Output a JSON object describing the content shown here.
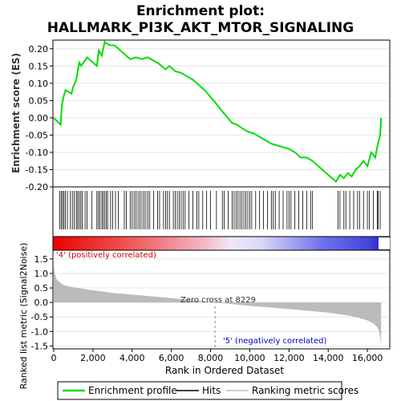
{
  "title": {
    "line1": "Enrichment plot:",
    "line2": "HALLMARK_PI3K_AKT_MTOR_SIGNALING"
  },
  "colors": {
    "es_line": "#00dd00",
    "hits": "#000000",
    "metric_fill": "#bbbbbb",
    "pos_label": "#cc0000",
    "neg_label": "#0000cc",
    "grid": "#e6e6e6"
  },
  "chart_data": [
    {
      "type": "line",
      "name": "enrichment-profile",
      "ylabel": "Enrichment score (ES)",
      "ylim": [
        -0.2,
        0.225
      ],
      "yticks": [
        -0.2,
        -0.15,
        -0.1,
        -0.05,
        0.0,
        0.05,
        0.1,
        0.15,
        0.2
      ],
      "ytick_labels": [
        "-0.20",
        "-0.15",
        "-0.10",
        "-0.05",
        "0.00",
        "0.05",
        "0.10",
        "0.15",
        "0.20"
      ],
      "xlim": [
        0,
        17100
      ],
      "grid": true,
      "series": [
        {
          "name": "Enrichment profile",
          "x": [
            0,
            350,
            420,
            500,
            600,
            900,
            1000,
            1150,
            1300,
            1400,
            1700,
            2200,
            2300,
            2450,
            2600,
            2700,
            2900,
            3100,
            3300,
            3600,
            3900,
            4200,
            4500,
            4800,
            5100,
            5400,
            5700,
            5900,
            6200,
            6500,
            6800,
            7100,
            7400,
            7700,
            8000,
            8229,
            8500,
            8800,
            9100,
            9350,
            9600,
            9900,
            10200,
            10500,
            10800,
            11100,
            11400,
            11700,
            12000,
            12300,
            12600,
            12900,
            13200,
            13500,
            13800,
            14100,
            14400,
            14600,
            14800,
            15000,
            15200,
            15400,
            15600,
            15800,
            16000,
            16200,
            16400,
            16500,
            16650,
            16700
          ],
          "y": [
            0.0,
            -0.02,
            0.04,
            0.06,
            0.08,
            0.07,
            0.09,
            0.11,
            0.16,
            0.15,
            0.175,
            0.15,
            0.195,
            0.18,
            0.22,
            0.215,
            0.21,
            0.21,
            0.2,
            0.185,
            0.17,
            0.175,
            0.17,
            0.175,
            0.165,
            0.155,
            0.14,
            0.15,
            0.135,
            0.13,
            0.12,
            0.11,
            0.095,
            0.08,
            0.06,
            0.045,
            0.025,
            0.005,
            -0.015,
            -0.02,
            -0.03,
            -0.04,
            -0.045,
            -0.055,
            -0.065,
            -0.075,
            -0.08,
            -0.085,
            -0.09,
            -0.1,
            -0.115,
            -0.115,
            -0.125,
            -0.14,
            -0.155,
            -0.17,
            -0.185,
            -0.165,
            -0.175,
            -0.16,
            -0.17,
            -0.15,
            -0.14,
            -0.125,
            -0.14,
            -0.1,
            -0.115,
            -0.085,
            -0.05,
            0.0
          ]
        }
      ]
    },
    {
      "type": "scatter",
      "name": "hits",
      "x": [
        300,
        380,
        450,
        520,
        600,
        700,
        850,
        950,
        1050,
        1150,
        1220,
        1300,
        1380,
        1450,
        1600,
        1700,
        1950,
        2200,
        2280,
        2350,
        2450,
        2520,
        2600,
        2680,
        2750,
        2900,
        3000,
        3150,
        3300,
        3600,
        3700,
        3900,
        4000,
        4100,
        4200,
        4300,
        4400,
        4500,
        4600,
        4700,
        4800,
        4900,
        5100,
        5300,
        5400,
        5600,
        5700,
        5800,
        5900,
        6100,
        6200,
        6300,
        6400,
        6500,
        6600,
        6700,
        6900,
        7100,
        7300,
        7400,
        7600,
        7800,
        8000,
        8300,
        8600,
        8700,
        8900,
        9100,
        9200,
        9300,
        9400,
        9500,
        9600,
        9700,
        9800,
        9900,
        10000,
        10100,
        10300,
        10500,
        10700,
        10900,
        11100,
        11200,
        11300,
        11500,
        11700,
        11900,
        12000,
        12100,
        12300,
        12500,
        12700,
        12900,
        13100,
        13200,
        14500,
        14600,
        14800,
        14900,
        15100,
        15300,
        15500,
        15600,
        15800,
        16000,
        16100,
        16300,
        16500,
        16550,
        16650
      ]
    },
    {
      "type": "area",
      "name": "ranked-list-metric",
      "ylabel": "Ranked list metric (Signal2Noise)",
      "xlabel": "Rank in Ordered Dataset",
      "ylim": [
        -1.6,
        1.8
      ],
      "yticks": [
        -1.5,
        -1.0,
        -0.5,
        0.0,
        0.5,
        1.0,
        1.5
      ],
      "ytick_labels": [
        "-1.5",
        "-1.0",
        "-0.5",
        "0.0",
        "0.5",
        "1.0",
        "1.5"
      ],
      "xticks": [
        0,
        2000,
        4000,
        6000,
        8000,
        10000,
        12000,
        14000,
        16000
      ],
      "xtick_labels": [
        "0",
        "2,000",
        "4,000",
        "6,000",
        "8,000",
        "10,000",
        "12,000",
        "14,000",
        "16,000"
      ],
      "x": [
        0,
        50,
        150,
        300,
        500,
        800,
        1200,
        2000,
        3000,
        4000,
        5000,
        6000,
        7000,
        8229,
        9000,
        10000,
        11000,
        12000,
        13000,
        14000,
        14500,
        15000,
        15500,
        16000,
        16300,
        16500,
        16600,
        16650,
        16700
      ],
      "y": [
        1.3,
        1.0,
        0.8,
        0.7,
        0.6,
        0.55,
        0.5,
        0.42,
        0.33,
        0.27,
        0.21,
        0.15,
        0.08,
        0.0,
        -0.05,
        -0.12,
        -0.17,
        -0.23,
        -0.29,
        -0.35,
        -0.4,
        -0.45,
        -0.52,
        -0.62,
        -0.72,
        -0.85,
        -1.0,
        -1.2,
        -1.5
      ]
    }
  ],
  "annotations": {
    "pos_label": "'4' (positively correlated)",
    "neg_label": "'5' (negatively correlated)",
    "zero_cross": "Zero cross at 8229",
    "zero_cross_x": 8229
  },
  "legend": [
    {
      "label": "Enrichment profile",
      "marker": "green-line"
    },
    {
      "label": "Hits",
      "marker": "black-line"
    },
    {
      "label": "Ranking metric scores",
      "marker": "gray-line"
    }
  ]
}
